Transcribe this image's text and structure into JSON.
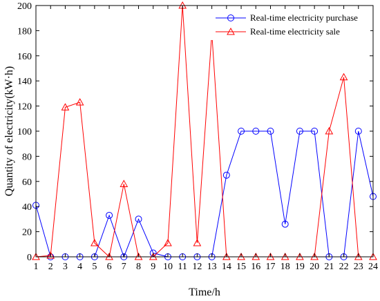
{
  "chart_data": {
    "type": "line",
    "xlabel": "Time/h",
    "ylabel": "Quantity of electricity(kW·h)",
    "xlim": [
      1,
      24
    ],
    "ylim": [
      0,
      200
    ],
    "x": [
      1,
      2,
      3,
      4,
      5,
      6,
      7,
      8,
      9,
      10,
      11,
      12,
      13,
      14,
      15,
      16,
      17,
      18,
      19,
      20,
      21,
      22,
      23,
      24
    ],
    "x_ticks": [
      "1",
      "2",
      "3",
      "4",
      "5",
      "6",
      "7",
      "8",
      "9",
      "10",
      "11",
      "12",
      "13",
      "14",
      "15",
      "16",
      "17",
      "18",
      "19",
      "20",
      "21",
      "22",
      "23",
      "24"
    ],
    "y_ticks": [
      "0",
      "20",
      "40",
      "60",
      "80",
      "100",
      "120",
      "140",
      "160",
      "180",
      "200"
    ],
    "legend_position": "top-right",
    "grid": false,
    "series": [
      {
        "name": "Real-time electricity purchase",
        "color": "#0000ff",
        "marker": "circle",
        "values": [
          41,
          0,
          0,
          0,
          0,
          33,
          0,
          30,
          3,
          0,
          0,
          0,
          0,
          65,
          100,
          100,
          100,
          26,
          100,
          100,
          0,
          0,
          100,
          48
        ]
      },
      {
        "name": "Real-time electricity sale",
        "color": "#ff0000",
        "marker": "triangle",
        "values": [
          0,
          1,
          119,
          123,
          11,
          0,
          58,
          0,
          0,
          11,
          200,
          11,
          178,
          0,
          0,
          0,
          0,
          0,
          0,
          0,
          100,
          143,
          0,
          0
        ]
      }
    ]
  }
}
